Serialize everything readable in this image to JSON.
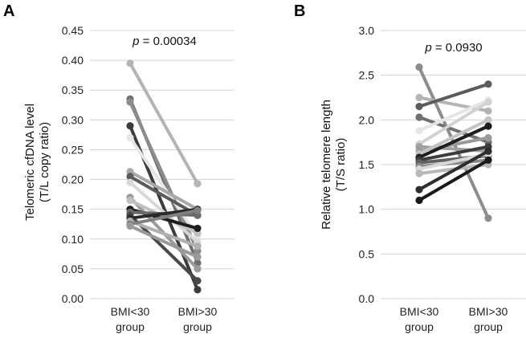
{
  "chart_data": [
    {
      "panel": "A",
      "type": "line",
      "title": "",
      "ylabel_line1": "Telomeric cfDNA level",
      "ylabel_line2": "(T/L copy ratio)",
      "xlabel": "",
      "ylim": [
        0,
        0.45
      ],
      "yticks": [
        0.0,
        0.05,
        0.1,
        0.15,
        0.2,
        0.25,
        0.3,
        0.35,
        0.4,
        0.45
      ],
      "ytick_labels": [
        "0.00",
        "0.05",
        "0.10",
        "0.15",
        "0.20",
        "0.25",
        "0.30",
        "0.35",
        "0.40",
        "0.45"
      ],
      "grid": true,
      "categories": [
        {
          "line1": "BMI<30",
          "line2": "group"
        },
        {
          "line1": "BMI>30",
          "line2": "group"
        }
      ],
      "annotation": {
        "p_symbol": "p",
        "p_text": " = 0.00034"
      },
      "series": [
        {
          "values": [
            0.395,
            0.193
          ],
          "color": "#b4b4b4"
        },
        {
          "values": [
            0.335,
            0.06
          ],
          "color": "#707070"
        },
        {
          "values": [
            0.33,
            0.08
          ],
          "color": "#8c8c8c"
        },
        {
          "values": [
            0.29,
            0.015
          ],
          "color": "#3c3c3c"
        },
        {
          "values": [
            0.27,
            0.105
          ],
          "color": "#e6e6e6"
        },
        {
          "values": [
            0.213,
            0.15
          ],
          "color": "#a8a8a8"
        },
        {
          "values": [
            0.205,
            0.14
          ],
          "color": "#5c5c5c"
        },
        {
          "values": [
            0.195,
            0.095
          ],
          "color": "#d8d8d8"
        },
        {
          "values": [
            0.17,
            0.05
          ],
          "color": "#9a9a9a"
        },
        {
          "values": [
            0.165,
            0.11
          ],
          "color": "#c0c0c0"
        },
        {
          "values": [
            0.15,
            0.118
          ],
          "color": "#1e1e1e"
        },
        {
          "values": [
            0.145,
            0.14
          ],
          "color": "#6a6a6a"
        },
        {
          "values": [
            0.14,
            0.03
          ],
          "color": "#4a4a4a"
        },
        {
          "values": [
            0.135,
            0.15
          ],
          "color": "#2a2a2a"
        },
        {
          "values": [
            0.13,
            0.088
          ],
          "color": "#b0b0b0"
        },
        {
          "values": [
            0.125,
            0.148
          ],
          "color": "#808080"
        },
        {
          "values": [
            0.122,
            0.07
          ],
          "color": "#9a9a9a"
        }
      ]
    },
    {
      "panel": "B",
      "type": "line",
      "title": "",
      "ylabel_line1": "Relative telomere length",
      "ylabel_line2": "(T/S ratio)",
      "xlabel": "",
      "ylim": [
        0,
        3.0
      ],
      "yticks": [
        0.0,
        0.5,
        1.0,
        1.5,
        2.0,
        2.5,
        3.0
      ],
      "ytick_labels": [
        "0.0",
        "0.5",
        "1.0",
        "1.5",
        "2.0",
        "2.5",
        "3.0"
      ],
      "grid": true,
      "categories": [
        {
          "line1": "BMI<30",
          "line2": "group"
        },
        {
          "line1": "BMI>30",
          "line2": "group"
        }
      ],
      "annotation": {
        "p_symbol": "p",
        "p_text": " = 0.0930"
      },
      "series": [
        {
          "values": [
            2.59,
            0.9
          ],
          "color": "#8c8c8c"
        },
        {
          "values": [
            2.25,
            2.1
          ],
          "color": "#b4b4b4"
        },
        {
          "values": [
            2.15,
            2.4
          ],
          "color": "#5c5c5c"
        },
        {
          "values": [
            2.03,
            1.75
          ],
          "color": "#707070"
        },
        {
          "values": [
            1.88,
            2.22
          ],
          "color": "#e6e6e6"
        },
        {
          "values": [
            1.73,
            2.2
          ],
          "color": "#d2d2d2"
        },
        {
          "values": [
            1.7,
            1.65
          ],
          "color": "#a0a0a0"
        },
        {
          "values": [
            1.65,
            1.8
          ],
          "color": "#9a9a9a"
        },
        {
          "values": [
            1.62,
            2.0
          ],
          "color": "#c4c4c4"
        },
        {
          "values": [
            1.58,
            1.93
          ],
          "color": "#1e1e1e"
        },
        {
          "values": [
            1.55,
            1.7
          ],
          "color": "#3c3c3c"
        },
        {
          "values": [
            1.52,
            1.6
          ],
          "color": "#606060"
        },
        {
          "values": [
            1.48,
            1.55
          ],
          "color": "#888888"
        },
        {
          "values": [
            1.45,
            1.62
          ],
          "color": "#d8d8d8"
        },
        {
          "values": [
            1.4,
            1.5
          ],
          "color": "#b8b8b8"
        },
        {
          "values": [
            1.22,
            1.65
          ],
          "color": "#2e2e2e"
        },
        {
          "values": [
            1.1,
            1.55
          ],
          "color": "#1a1a1a"
        }
      ]
    }
  ]
}
